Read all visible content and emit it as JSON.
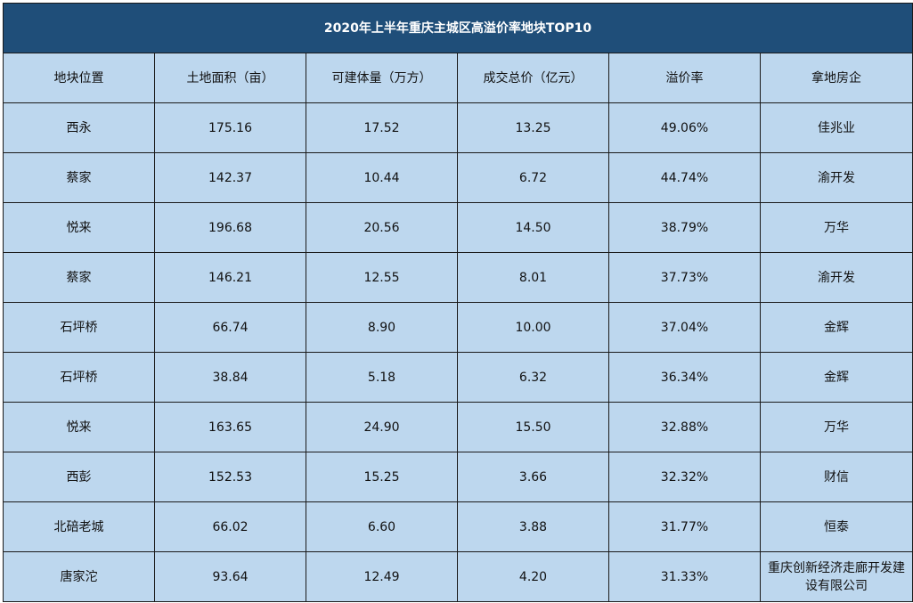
{
  "title": "2020年上半年重庆主城区高溢价率地块TOP10",
  "columns": [
    "地块位置",
    "土地面积（亩）",
    "可建体量（万方）",
    "成交总价（亿元）",
    "溢价率",
    "拿地房企"
  ],
  "rows": [
    [
      "西永",
      "175.16",
      "17.52",
      "13.25",
      "49.06%",
      "佳兆业"
    ],
    [
      "蔡家",
      "142.37",
      "10.44",
      "6.72",
      "44.74%",
      "渝开发"
    ],
    [
      "悦来",
      "196.68",
      "20.56",
      "14.50",
      "38.79%",
      "万华"
    ],
    [
      "蔡家",
      "146.21",
      "12.55",
      "8.01",
      "37.73%",
      "渝开发"
    ],
    [
      "石坪桥",
      "66.74",
      "8.90",
      "10.00",
      "37.04%",
      "金辉"
    ],
    [
      "石坪桥",
      "38.84",
      "5.18",
      "6.32",
      "36.34%",
      "金辉"
    ],
    [
      "悦来",
      "163.65",
      "24.90",
      "15.50",
      "32.88%",
      "万华"
    ],
    [
      "西彭",
      "152.53",
      "15.25",
      "3.66",
      "32.32%",
      "财信"
    ],
    [
      "北碚老城",
      "66.02",
      "6.60",
      "3.88",
      "31.77%",
      "恒泰"
    ],
    [
      "唐家沱",
      "93.64",
      "12.49",
      "4.20",
      "31.33%",
      "重庆创新经济走廊开发建设有限公司"
    ]
  ],
  "colors": {
    "title_bg": "#1f4e79",
    "title_text": "#ffffff",
    "cell_bg": "#bdd7ee",
    "border": "#1a1a1a"
  }
}
